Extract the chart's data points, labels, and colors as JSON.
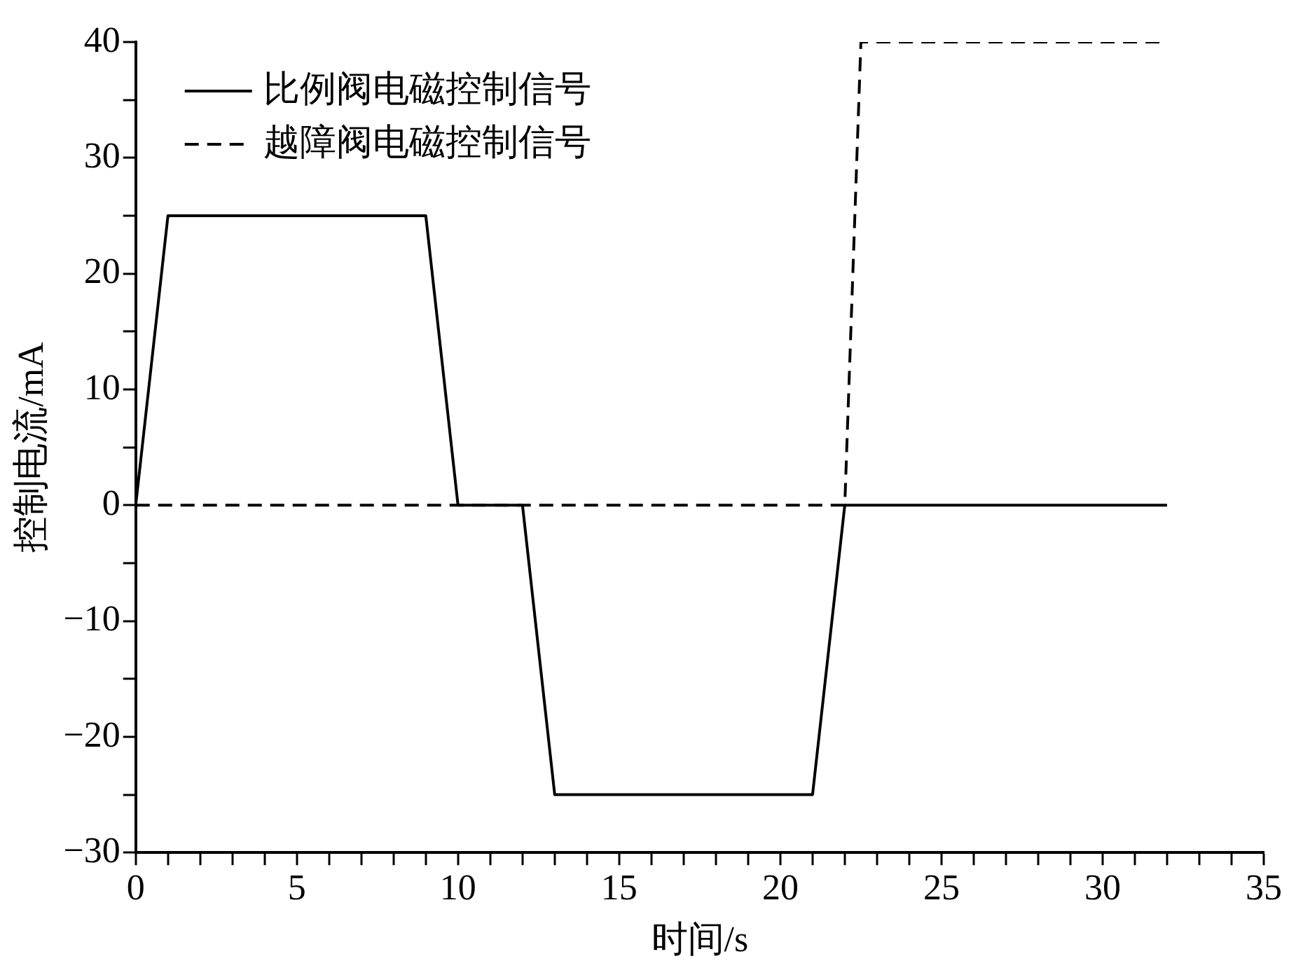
{
  "chart_data": {
    "type": "line",
    "xlabel": "时间/s",
    "ylabel": "控制电流/mA",
    "series": [
      {
        "name": "比例阀电磁控制信号",
        "color": "#000000",
        "line_style": "solid",
        "x": [
          0,
          1,
          9,
          10,
          12,
          13,
          21,
          22,
          32
        ],
        "values": [
          0,
          25,
          25,
          0,
          0,
          -25,
          -25,
          0,
          0
        ]
      },
      {
        "name": "越障阀电磁控制信号",
        "color": "#000000",
        "line_style": "dashed",
        "x": [
          0,
          22,
          22.5,
          32
        ],
        "values": [
          0,
          0,
          40,
          40
        ]
      }
    ],
    "xlim": [
      0,
      35
    ],
    "xticks": [
      0,
      {
        "value": 1,
        "label": null
      },
      {
        "value": 2,
        "label": null
      },
      {
        "value": 3,
        "label": null
      },
      {
        "value": 4,
        "label": null
      },
      5,
      {
        "value": 6,
        "label": null
      },
      {
        "value": 7,
        "label": null
      },
      {
        "value": 8,
        "label": null
      },
      {
        "value": 9,
        "label": null
      },
      10,
      {
        "value": 11,
        "label": null
      },
      {
        "value": 12,
        "label": null
      },
      {
        "value": 13,
        "label": null
      },
      {
        "value": 14,
        "label": null
      },
      15,
      {
        "value": 16,
        "label": null
      },
      {
        "value": 17,
        "label": null
      },
      {
        "value": 18,
        "label": null
      },
      {
        "value": 19,
        "label": null
      },
      20,
      {
        "value": 21,
        "label": null
      },
      {
        "value": 22,
        "label": null
      },
      {
        "value": 23,
        "label": null
      },
      {
        "value": 24,
        "label": null
      },
      25,
      {
        "value": 26,
        "label": null
      },
      {
        "value": 27,
        "label": null
      },
      {
        "value": 28,
        "label": null
      },
      {
        "value": 29,
        "label": null
      },
      30,
      {
        "value": 31,
        "label": null
      },
      {
        "value": 32,
        "label": null
      },
      {
        "value": 33,
        "label": null
      },
      {
        "value": 34,
        "label": null
      },
      35
    ],
    "ylim": [
      -30,
      40
    ],
    "yticks": [
      {
        "value": -30,
        "label": "−30"
      },
      {
        "value": -25,
        "label": null
      },
      {
        "value": -20,
        "label": "−20"
      },
      {
        "value": -15,
        "label": null
      },
      {
        "value": -10,
        "label": "−10"
      },
      {
        "value": -5,
        "label": null
      },
      0,
      {
        "value": 5,
        "label": null
      },
      10,
      {
        "value": 15,
        "label": null
      },
      20,
      {
        "value": 25,
        "label": null
      },
      30,
      {
        "value": 35,
        "label": null
      },
      40
    ],
    "grid": false,
    "legend": "top left",
    "marker": "none"
  }
}
